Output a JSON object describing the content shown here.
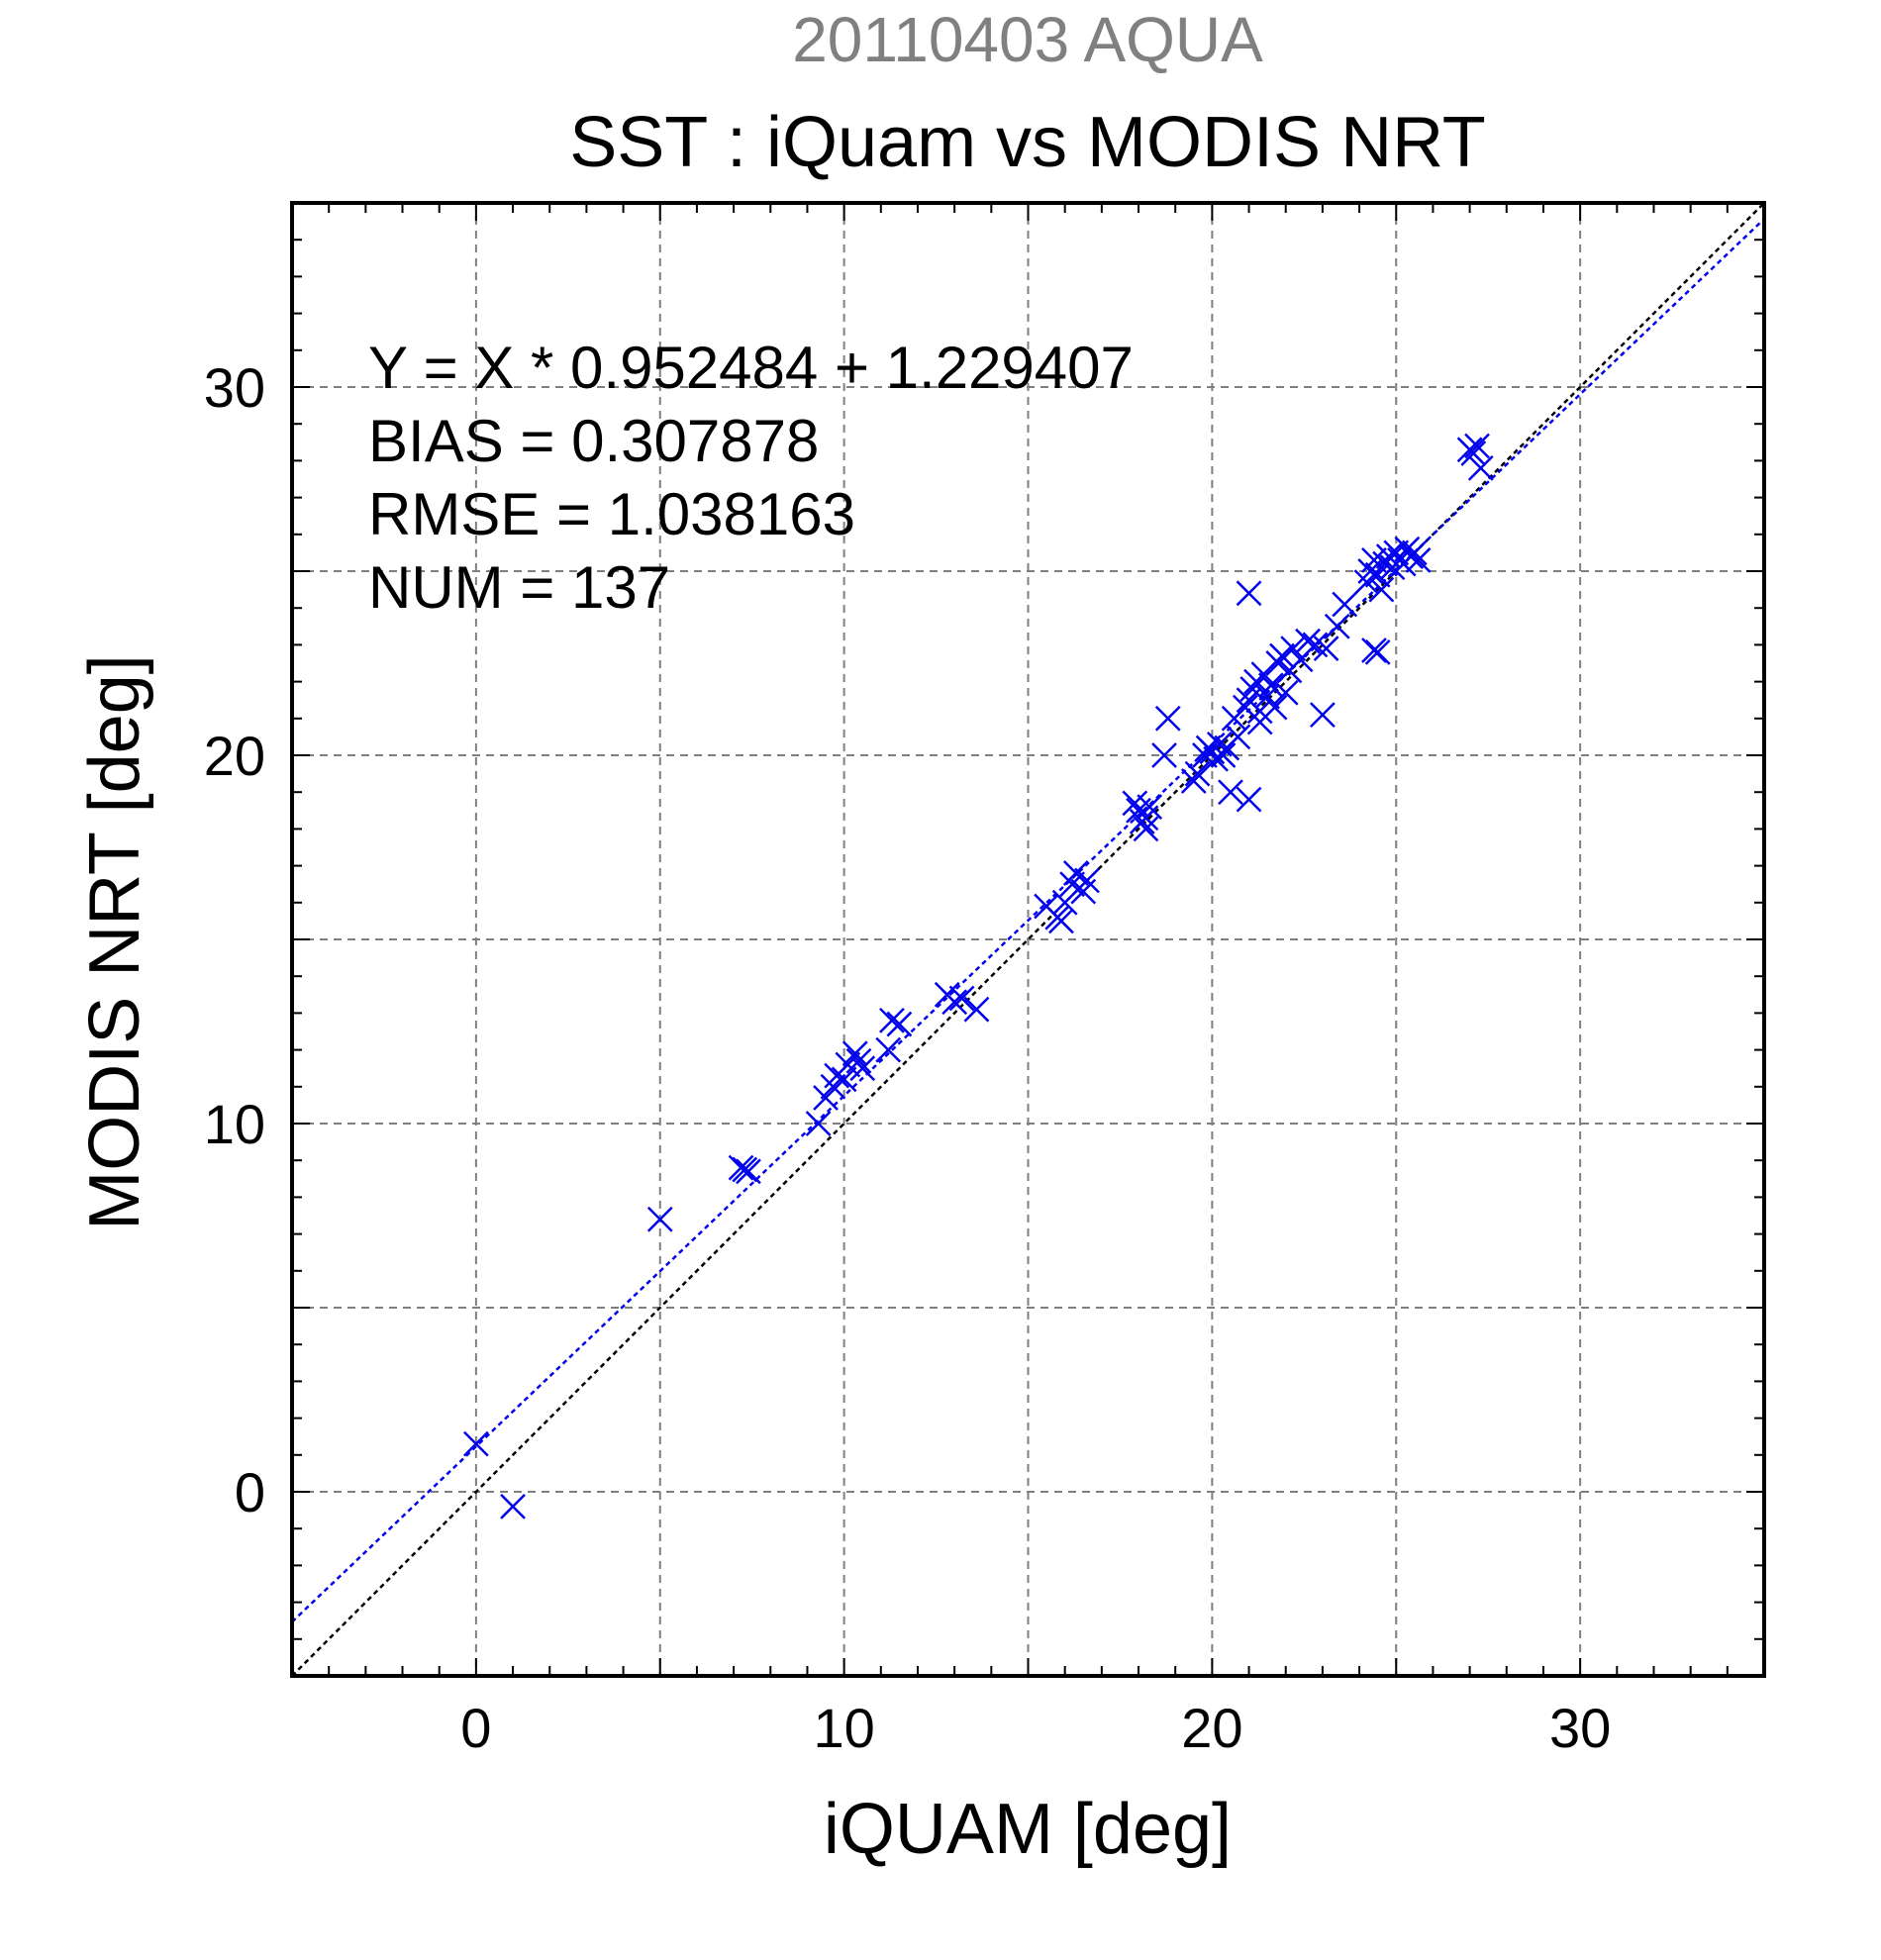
{
  "chart_data": {
    "type": "scatter",
    "suptitle": "20110403 AQUA",
    "title": "SST : iQuam vs MODIS NRT",
    "xlabel": "iQUAM [deg]",
    "ylabel": "MODIS NRT [deg]",
    "xlim": [
      -5,
      35
    ],
    "ylim": [
      -5,
      35
    ],
    "x_ticks": [
      0,
      10,
      20,
      30
    ],
    "y_ticks": [
      0,
      10,
      20,
      30
    ],
    "grid": true,
    "annotations": [
      "Y = X * 0.952484 + 1.229407",
      "BIAS = 0.307878",
      "RMSE = 1.038163",
      "NUM = 137"
    ],
    "regression_line": {
      "slope": 0.952484,
      "intercept": 1.229407,
      "color": "#0000ee"
    },
    "identity_line": {
      "slope": 1,
      "intercept": 0,
      "color": "#000000"
    },
    "marker_color": "#0000ee",
    "points": [
      [
        0.0,
        1.3
      ],
      [
        1.0,
        -0.4
      ],
      [
        5.0,
        7.4
      ],
      [
        7.2,
        8.8
      ],
      [
        7.4,
        8.7
      ],
      [
        7.3,
        8.75
      ],
      [
        9.3,
        10.0
      ],
      [
        9.5,
        10.7
      ],
      [
        9.7,
        11.0
      ],
      [
        9.8,
        11.3
      ],
      [
        10.0,
        11.2
      ],
      [
        10.1,
        11.6
      ],
      [
        10.3,
        11.9
      ],
      [
        10.4,
        11.7
      ],
      [
        10.5,
        11.5
      ],
      [
        11.2,
        12.0
      ],
      [
        11.3,
        12.8
      ],
      [
        11.5,
        12.7
      ],
      [
        12.8,
        13.5
      ],
      [
        13.0,
        13.3
      ],
      [
        13.2,
        13.4
      ],
      [
        13.6,
        13.1
      ],
      [
        15.5,
        15.9
      ],
      [
        15.8,
        15.6
      ],
      [
        15.9,
        15.5
      ],
      [
        16.0,
        16.0
      ],
      [
        16.2,
        16.5
      ],
      [
        16.3,
        16.8
      ],
      [
        16.5,
        16.3
      ],
      [
        16.6,
        16.6
      ],
      [
        17.9,
        18.7
      ],
      [
        18.0,
        18.5
      ],
      [
        18.1,
        18.2
      ],
      [
        18.2,
        18.0
      ],
      [
        18.3,
        18.6
      ],
      [
        18.2,
        18.3
      ],
      [
        18.8,
        21.0
      ],
      [
        18.7,
        20.0
      ],
      [
        19.5,
        19.3
      ],
      [
        19.6,
        19.5
      ],
      [
        19.8,
        20.0
      ],
      [
        19.9,
        20.2
      ],
      [
        20.0,
        20.1
      ],
      [
        20.1,
        19.9
      ],
      [
        20.2,
        20.3
      ],
      [
        20.3,
        20.0
      ],
      [
        20.4,
        20.2
      ],
      [
        20.5,
        19.0
      ],
      [
        20.6,
        21.0
      ],
      [
        20.7,
        20.5
      ],
      [
        21.0,
        18.8
      ],
      [
        21.0,
        24.4
      ],
      [
        20.9,
        21.3
      ],
      [
        21.0,
        21.5
      ],
      [
        21.1,
        21.8
      ],
      [
        21.2,
        22.0
      ],
      [
        21.3,
        21.2
      ],
      [
        21.3,
        20.9
      ],
      [
        21.4,
        22.2
      ],
      [
        21.5,
        21.6
      ],
      [
        21.6,
        21.9
      ],
      [
        21.7,
        21.3
      ],
      [
        21.8,
        22.5
      ],
      [
        21.9,
        22.7
      ],
      [
        22.0,
        21.7
      ],
      [
        22.1,
        22.3
      ],
      [
        22.2,
        22.9
      ],
      [
        22.4,
        22.6
      ],
      [
        22.6,
        23.1
      ],
      [
        22.8,
        23.0
      ],
      [
        23.0,
        21.1
      ],
      [
        23.1,
        22.9
      ],
      [
        23.4,
        23.5
      ],
      [
        23.6,
        24.1
      ],
      [
        24.2,
        24.7
      ],
      [
        24.3,
        25.0
      ],
      [
        24.4,
        25.3
      ],
      [
        24.5,
        24.9
      ],
      [
        24.5,
        22.8
      ],
      [
        24.4,
        22.85
      ],
      [
        24.6,
        24.5
      ],
      [
        24.7,
        25.2
      ],
      [
        24.8,
        25.4
      ],
      [
        24.9,
        25.1
      ],
      [
        25.0,
        25.5
      ],
      [
        25.1,
        25.3
      ],
      [
        25.2,
        25.2
      ],
      [
        25.3,
        25.6
      ],
      [
        25.4,
        25.4
      ],
      [
        25.5,
        25.5
      ],
      [
        25.6,
        25.3
      ],
      [
        27.0,
        28.3
      ],
      [
        27.1,
        28.2
      ],
      [
        27.2,
        28.4
      ],
      [
        27.3,
        27.8
      ]
    ]
  }
}
